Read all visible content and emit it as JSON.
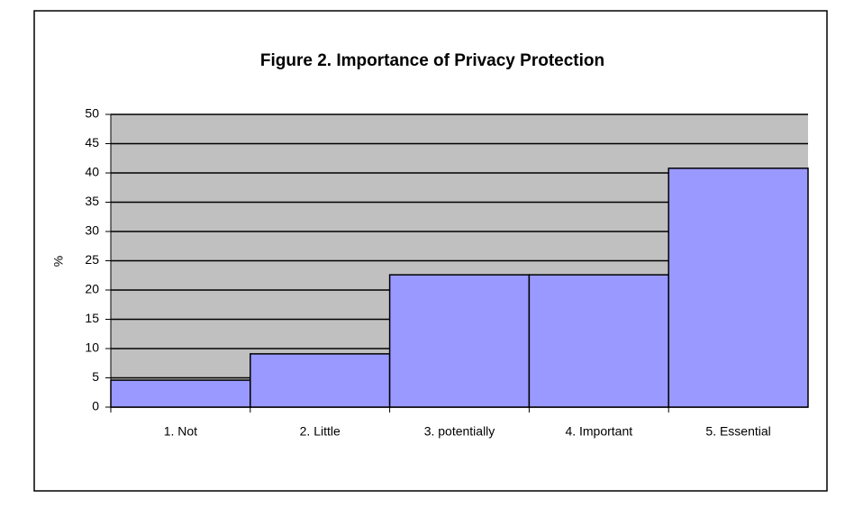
{
  "chart_data": {
    "type": "bar",
    "title": "Figure 2. Importance of Privacy Protection",
    "ylabel": "%",
    "categories": [
      "1. Not",
      "2. Little",
      "3. potentially",
      "4. Important",
      "5. Essential"
    ],
    "values": [
      4.6,
      9.1,
      22.6,
      22.6,
      40.8
    ],
    "color": "#9999ff",
    "background": "#c0c0c0",
    "ylim": [
      0,
      50
    ],
    "yticks": [
      0,
      5,
      10,
      15,
      20,
      25,
      30,
      35,
      40,
      45,
      50
    ],
    "grid": true
  }
}
